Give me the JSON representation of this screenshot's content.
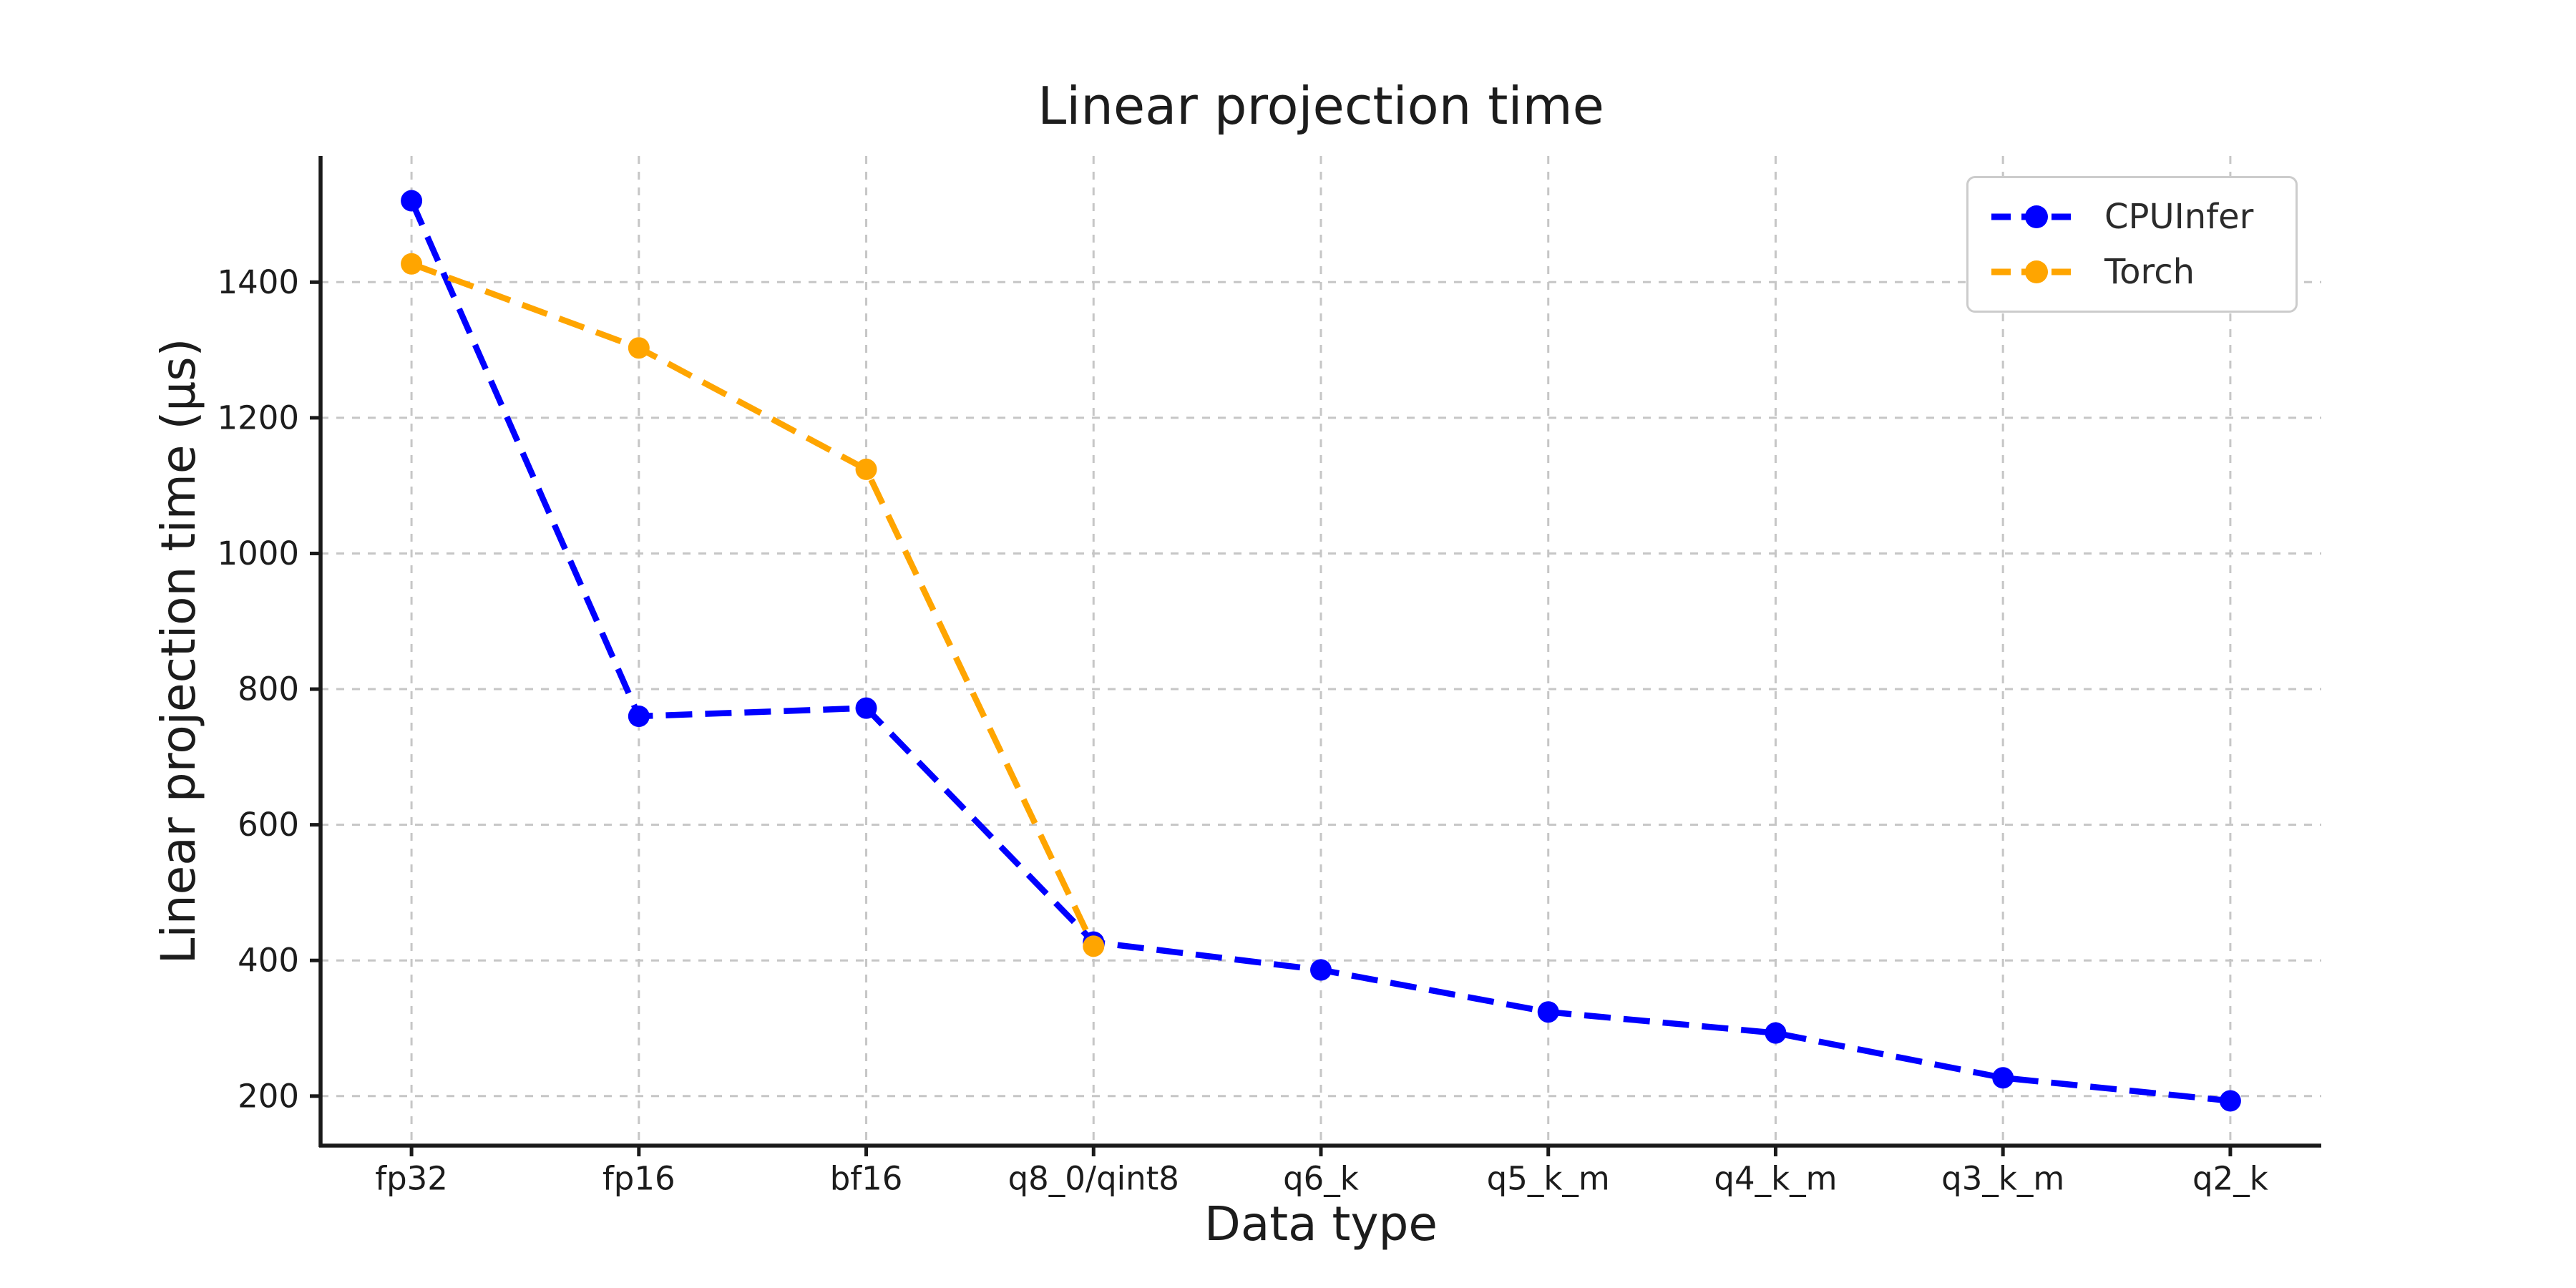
{
  "chart_data": {
    "type": "line",
    "title": "Linear projection time",
    "xlabel": "Data type",
    "ylabel": "Linear projection time (µs)",
    "categories": [
      "fp32",
      "fp16",
      "bf16",
      "q8_0/qint8",
      "q6_k",
      "q5_k_m",
      "q4_k_m",
      "q3_k_m",
      "q2_k"
    ],
    "series": [
      {
        "name": "CPUInfer",
        "color": "#0000ff",
        "values": [
          1520,
          760,
          772,
          427,
          386,
          324,
          293,
          227,
          193
        ]
      },
      {
        "name": "Torch",
        "color": "#ffa500",
        "values": [
          1427,
          1303,
          1124,
          421,
          null,
          null,
          null,
          null,
          null
        ]
      }
    ],
    "yticks": [
      200,
      400,
      600,
      800,
      1000,
      1200,
      1400
    ],
    "ylim": [
      127,
      1586
    ],
    "grid": true,
    "line_style": "dashed",
    "marker": "circle",
    "legend_position": "upper right",
    "colors": {
      "grid": "#c6c6c6",
      "spine": "#1a1a1a",
      "tick_label": "#1c1c1c",
      "background": "#ffffff"
    }
  }
}
